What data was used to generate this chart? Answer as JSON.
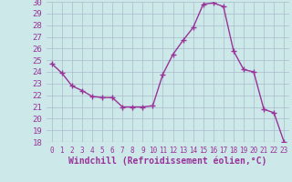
{
  "x": [
    0,
    1,
    2,
    3,
    4,
    5,
    6,
    7,
    8,
    9,
    10,
    11,
    12,
    13,
    14,
    15,
    16,
    17,
    18,
    19,
    20,
    21,
    22,
    23
  ],
  "y": [
    24.7,
    23.9,
    22.8,
    22.4,
    21.9,
    21.8,
    21.8,
    21.0,
    21.0,
    21.0,
    21.1,
    23.8,
    25.5,
    26.7,
    27.8,
    29.8,
    29.9,
    29.6,
    25.8,
    24.2,
    24.0,
    20.8,
    20.5,
    18.0
  ],
  "line_color": "#993399",
  "marker": "+",
  "marker_size": 4,
  "bg_color": "#cce8e8",
  "grid_color": "#aabbcc",
  "xlabel": "Windchill (Refroidissement éolien,°C)",
  "xlabel_color": "#993399",
  "tick_color": "#993399",
  "ylim": [
    18,
    30
  ],
  "xlim": [
    -0.5,
    23.5
  ],
  "yticks": [
    18,
    19,
    20,
    21,
    22,
    23,
    24,
    25,
    26,
    27,
    28,
    29,
    30
  ],
  "xticks": [
    0,
    1,
    2,
    3,
    4,
    5,
    6,
    7,
    8,
    9,
    10,
    11,
    12,
    13,
    14,
    15,
    16,
    17,
    18,
    19,
    20,
    21,
    22,
    23
  ],
  "ytick_fontsize": 6.5,
  "xtick_fontsize": 5.5,
  "xlabel_fontsize": 7.0,
  "linewidth": 1.0,
  "markeredgewidth": 1.0
}
